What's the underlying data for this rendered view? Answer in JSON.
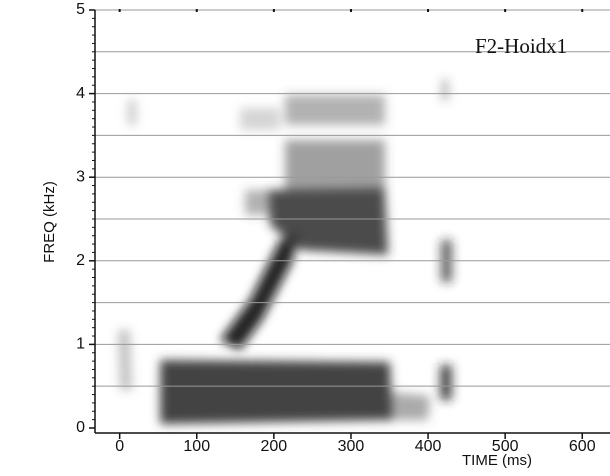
{
  "chart_data": {
    "type": "spectrogram",
    "annotation": "F2-Hoidx1",
    "x_label": "TIME (ms)",
    "y_label": "FREQ (kHz)",
    "xlim": [
      -32,
      636
    ],
    "ylim": [
      -0.06,
      5
    ],
    "xticks": [
      0,
      100,
      200,
      300,
      400,
      500,
      600
    ],
    "yticks": [
      0,
      1,
      2,
      3,
      4,
      5
    ],
    "ygrid": [
      0.5,
      1,
      1.5,
      2,
      2.5,
      3,
      3.5,
      4,
      4.5,
      5
    ]
  }
}
